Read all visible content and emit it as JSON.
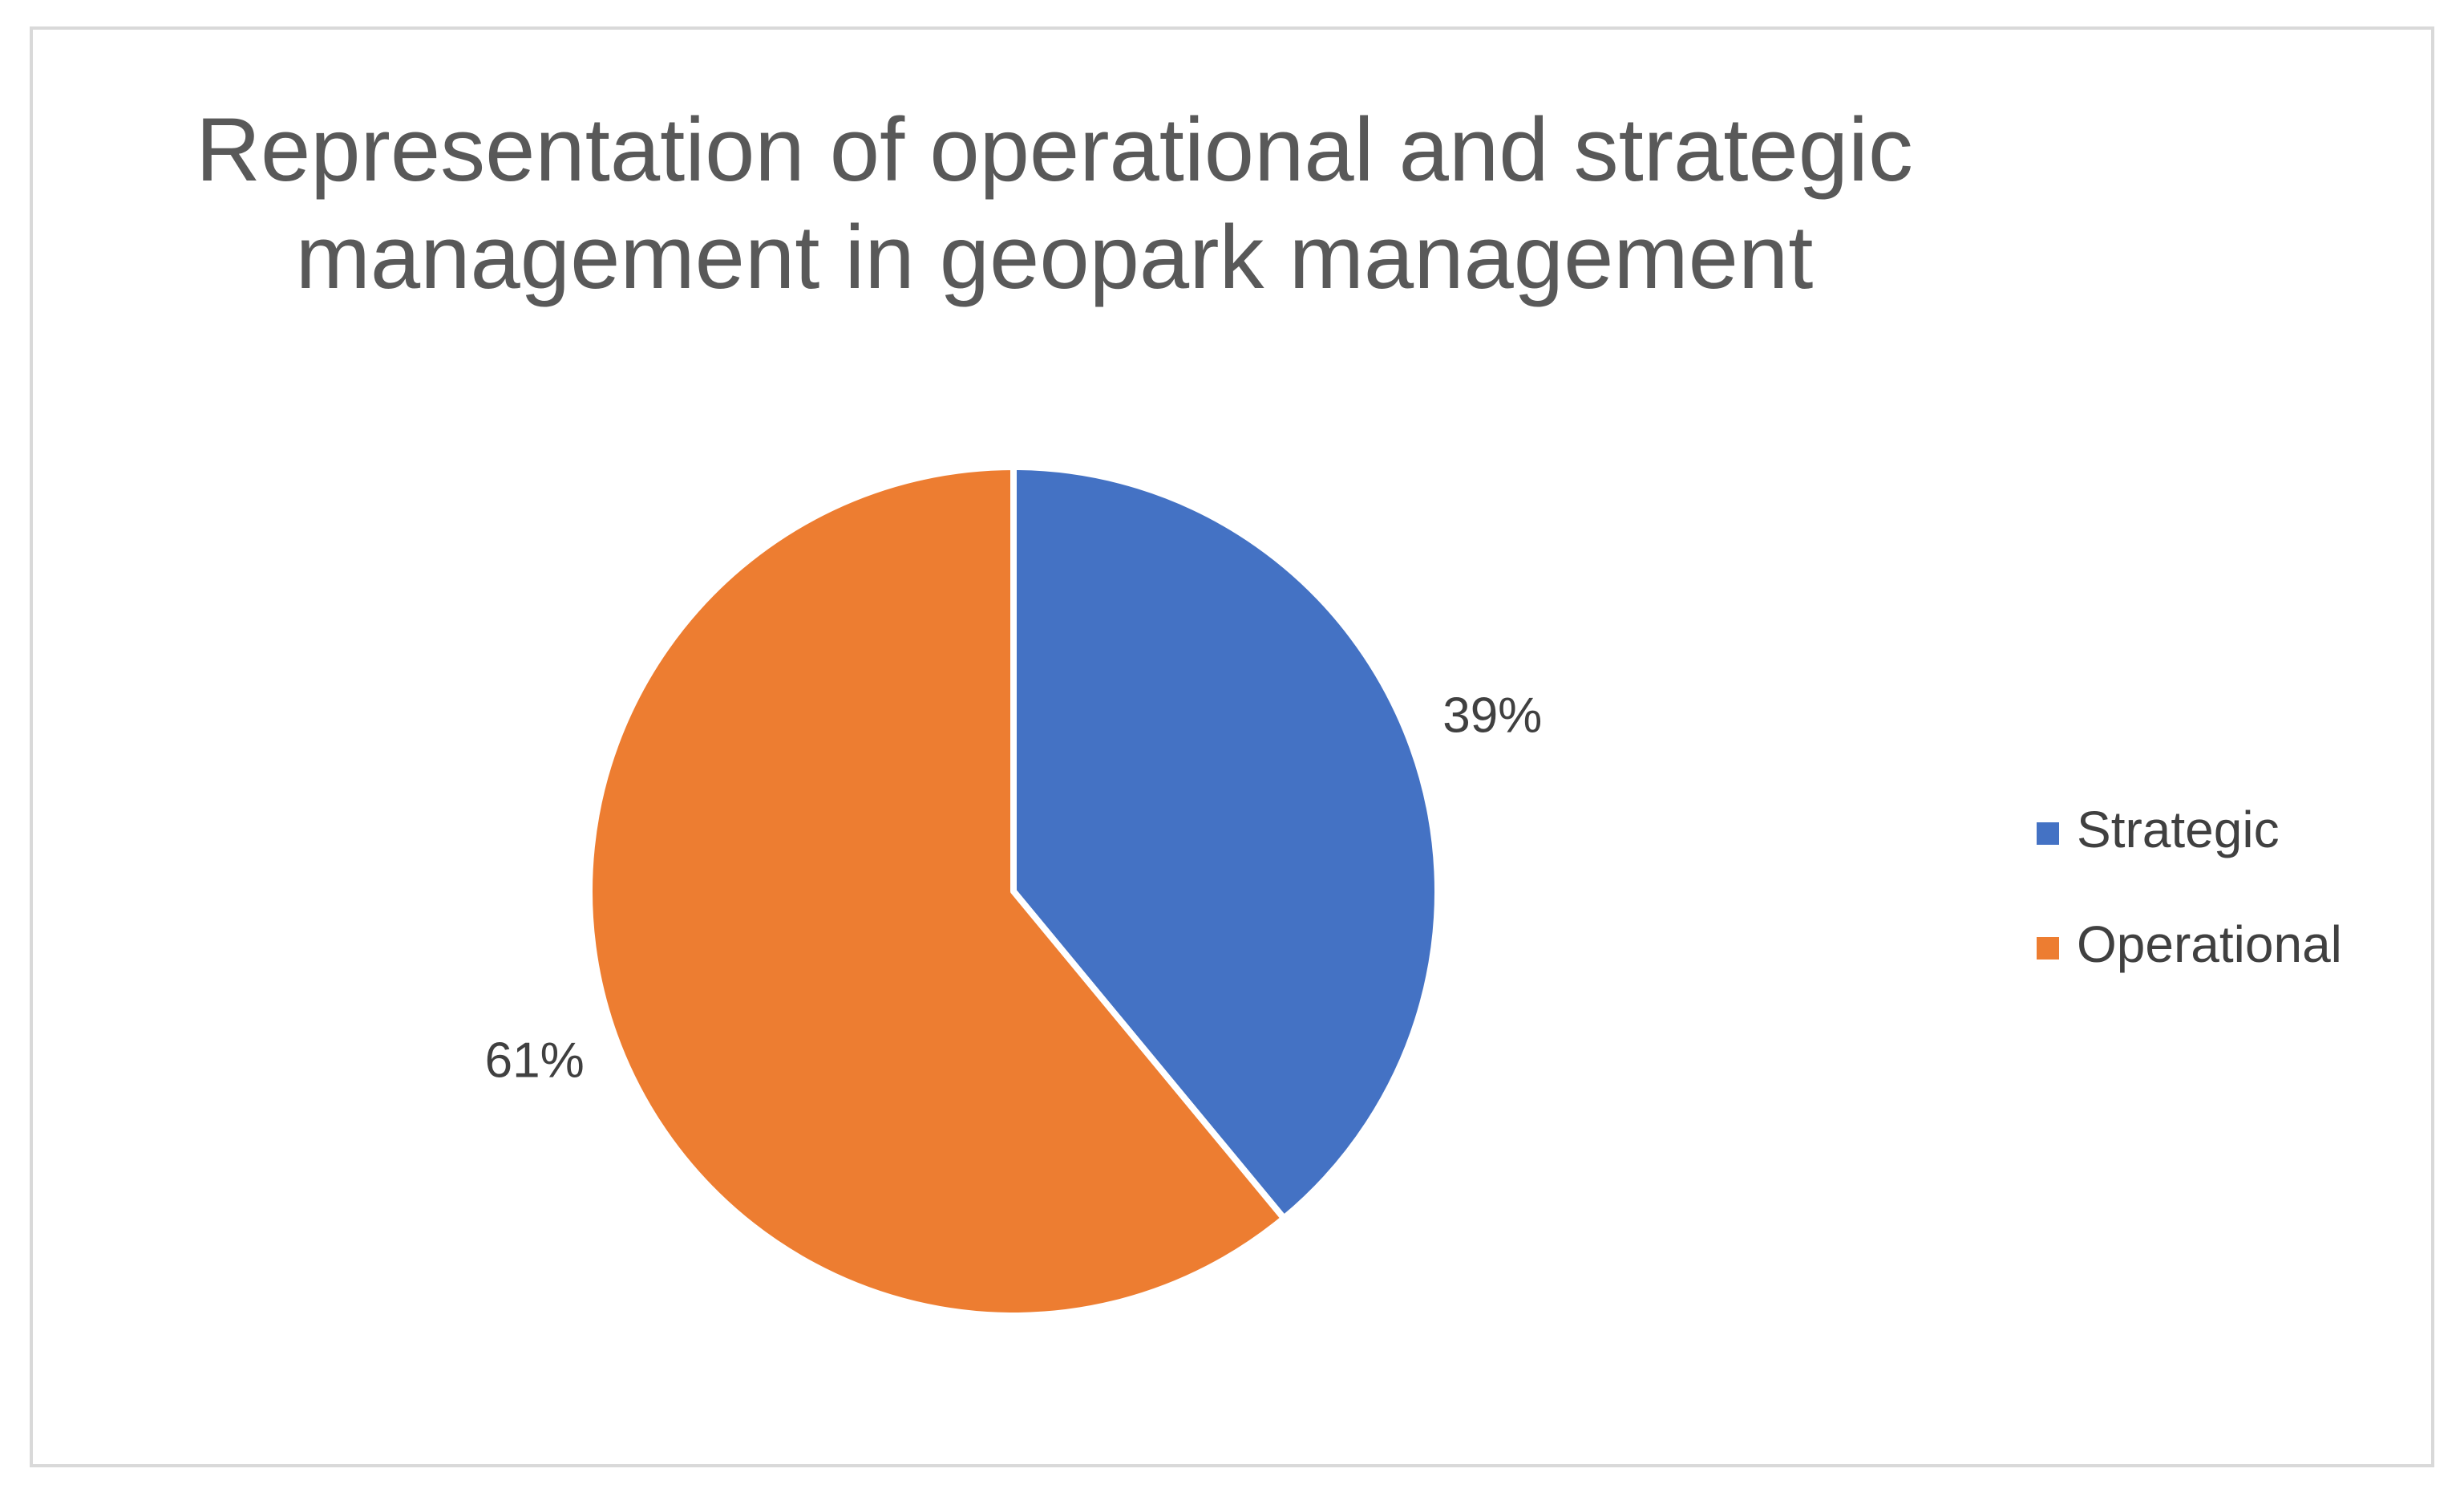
{
  "chart_data": {
    "type": "pie",
    "title": "Representation of operational and strategic management in geopark management",
    "categories": [
      "Strategic",
      "Operational"
    ],
    "values": [
      39,
      61
    ],
    "value_labels": [
      "39%",
      "61%"
    ],
    "colors": [
      "#4472c4",
      "#ed7d31"
    ],
    "legend": "right"
  }
}
